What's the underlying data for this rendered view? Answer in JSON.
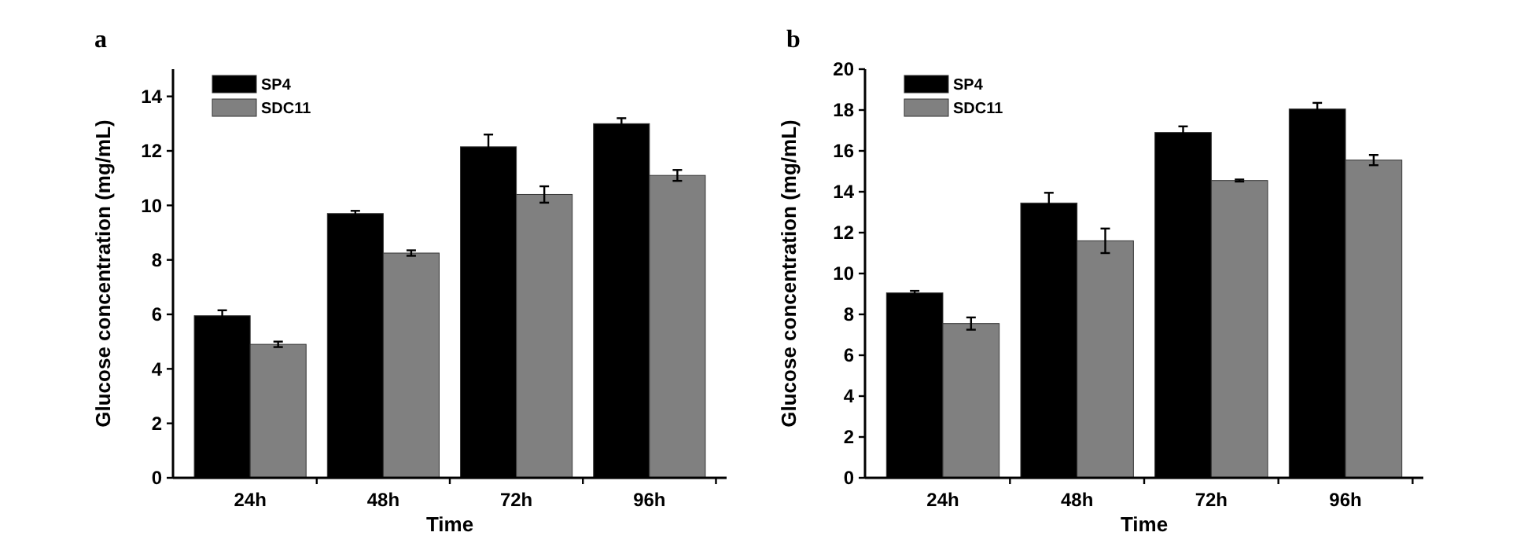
{
  "chart_data": [
    {
      "type": "bar",
      "title": "a",
      "xlabel": "Time",
      "ylabel": "Glucose concentration (mg/mL)",
      "categories": [
        "24h",
        "48h",
        "72h",
        "96h"
      ],
      "ylim": [
        0,
        15
      ],
      "yticks": [
        0,
        2,
        4,
        6,
        8,
        10,
        12,
        14
      ],
      "legend": "top left",
      "series": [
        {
          "name": "SP4",
          "color": "#000000",
          "values": [
            5.95,
            9.7,
            12.15,
            13.0
          ],
          "errors": [
            0.2,
            0.1,
            0.45,
            0.2
          ]
        },
        {
          "name": "SDC11",
          "color": "#808080",
          "values": [
            4.9,
            8.25,
            10.4,
            11.1
          ],
          "errors": [
            0.1,
            0.1,
            0.3,
            0.2
          ]
        }
      ]
    },
    {
      "type": "bar",
      "title": "b",
      "xlabel": "Time",
      "ylabel": "Glucose concentration (mg/mL)",
      "categories": [
        "24h",
        "48h",
        "72h",
        "96h"
      ],
      "ylim": [
        0,
        20
      ],
      "yticks": [
        0,
        2,
        4,
        6,
        8,
        10,
        12,
        14,
        16,
        18,
        20
      ],
      "legend": "top left",
      "series": [
        {
          "name": "SP4",
          "color": "#000000",
          "values": [
            9.05,
            13.45,
            16.9,
            18.05
          ],
          "errors": [
            0.1,
            0.5,
            0.3,
            0.3
          ]
        },
        {
          "name": "SDC11",
          "color": "#808080",
          "values": [
            7.55,
            11.6,
            14.55,
            15.55
          ],
          "errors": [
            0.3,
            0.6,
            0.05,
            0.25
          ]
        }
      ]
    }
  ]
}
